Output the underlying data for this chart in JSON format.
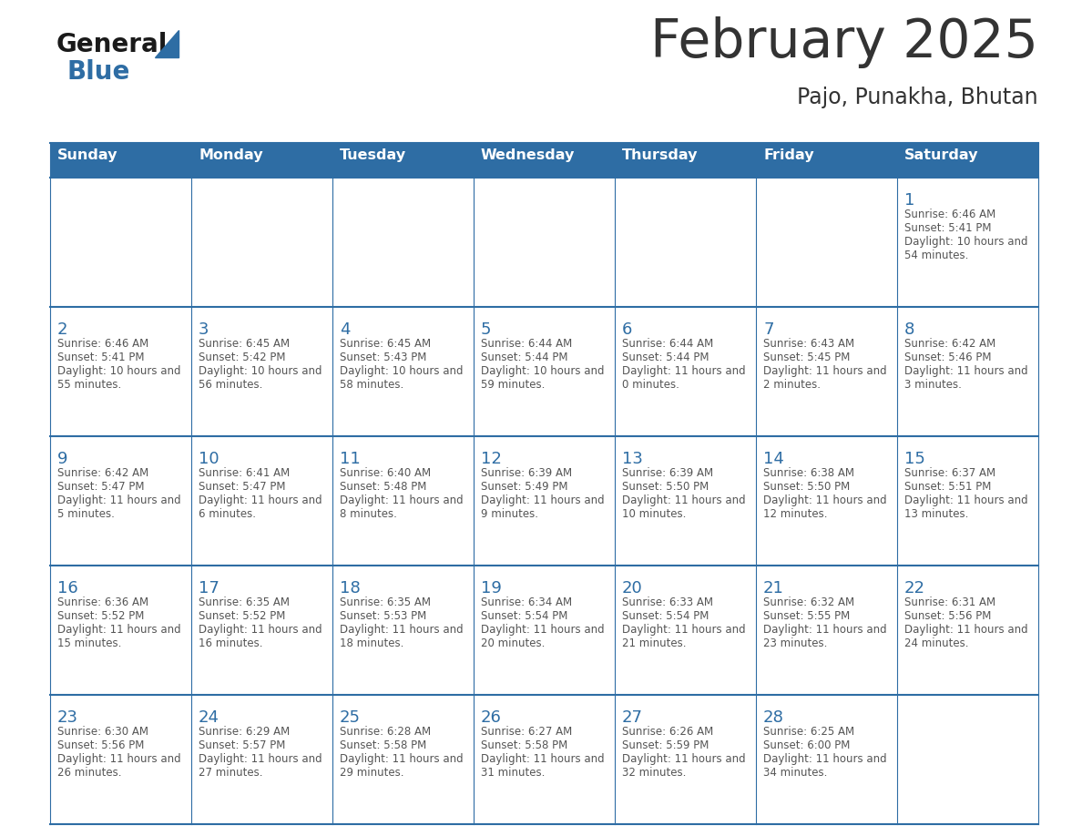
{
  "title": "February 2025",
  "subtitle": "Pajo, Punakha, Bhutan",
  "days_of_week": [
    "Sunday",
    "Monday",
    "Tuesday",
    "Wednesday",
    "Thursday",
    "Friday",
    "Saturday"
  ],
  "header_bg": "#2E6DA4",
  "header_text": "#FFFFFF",
  "cell_bg": "#FFFFFF",
  "day_num_color": "#2E6DA4",
  "text_color": "#333333",
  "info_text_color": "#555555",
  "line_color": "#2E6DA4",
  "logo_general_color": "#1a1a1a",
  "logo_blue_color": "#2E6DA4",
  "logo_triangle_color": "#2E6DA4",
  "calendar_data": [
    [
      {
        "day": null,
        "sunrise": null,
        "sunset": null,
        "daylight": null
      },
      {
        "day": null,
        "sunrise": null,
        "sunset": null,
        "daylight": null
      },
      {
        "day": null,
        "sunrise": null,
        "sunset": null,
        "daylight": null
      },
      {
        "day": null,
        "sunrise": null,
        "sunset": null,
        "daylight": null
      },
      {
        "day": null,
        "sunrise": null,
        "sunset": null,
        "daylight": null
      },
      {
        "day": null,
        "sunrise": null,
        "sunset": null,
        "daylight": null
      },
      {
        "day": 1,
        "sunrise": "6:46 AM",
        "sunset": "5:41 PM",
        "daylight": "10 hours and 54 minutes."
      }
    ],
    [
      {
        "day": 2,
        "sunrise": "6:46 AM",
        "sunset": "5:41 PM",
        "daylight": "10 hours and 55 minutes."
      },
      {
        "day": 3,
        "sunrise": "6:45 AM",
        "sunset": "5:42 PM",
        "daylight": "10 hours and 56 minutes."
      },
      {
        "day": 4,
        "sunrise": "6:45 AM",
        "sunset": "5:43 PM",
        "daylight": "10 hours and 58 minutes."
      },
      {
        "day": 5,
        "sunrise": "6:44 AM",
        "sunset": "5:44 PM",
        "daylight": "10 hours and 59 minutes."
      },
      {
        "day": 6,
        "sunrise": "6:44 AM",
        "sunset": "5:44 PM",
        "daylight": "11 hours and 0 minutes."
      },
      {
        "day": 7,
        "sunrise": "6:43 AM",
        "sunset": "5:45 PM",
        "daylight": "11 hours and 2 minutes."
      },
      {
        "day": 8,
        "sunrise": "6:42 AM",
        "sunset": "5:46 PM",
        "daylight": "11 hours and 3 minutes."
      }
    ],
    [
      {
        "day": 9,
        "sunrise": "6:42 AM",
        "sunset": "5:47 PM",
        "daylight": "11 hours and 5 minutes."
      },
      {
        "day": 10,
        "sunrise": "6:41 AM",
        "sunset": "5:47 PM",
        "daylight": "11 hours and 6 minutes."
      },
      {
        "day": 11,
        "sunrise": "6:40 AM",
        "sunset": "5:48 PM",
        "daylight": "11 hours and 8 minutes."
      },
      {
        "day": 12,
        "sunrise": "6:39 AM",
        "sunset": "5:49 PM",
        "daylight": "11 hours and 9 minutes."
      },
      {
        "day": 13,
        "sunrise": "6:39 AM",
        "sunset": "5:50 PM",
        "daylight": "11 hours and 10 minutes."
      },
      {
        "day": 14,
        "sunrise": "6:38 AM",
        "sunset": "5:50 PM",
        "daylight": "11 hours and 12 minutes."
      },
      {
        "day": 15,
        "sunrise": "6:37 AM",
        "sunset": "5:51 PM",
        "daylight": "11 hours and 13 minutes."
      }
    ],
    [
      {
        "day": 16,
        "sunrise": "6:36 AM",
        "sunset": "5:52 PM",
        "daylight": "11 hours and 15 minutes."
      },
      {
        "day": 17,
        "sunrise": "6:35 AM",
        "sunset": "5:52 PM",
        "daylight": "11 hours and 16 minutes."
      },
      {
        "day": 18,
        "sunrise": "6:35 AM",
        "sunset": "5:53 PM",
        "daylight": "11 hours and 18 minutes."
      },
      {
        "day": 19,
        "sunrise": "6:34 AM",
        "sunset": "5:54 PM",
        "daylight": "11 hours and 20 minutes."
      },
      {
        "day": 20,
        "sunrise": "6:33 AM",
        "sunset": "5:54 PM",
        "daylight": "11 hours and 21 minutes."
      },
      {
        "day": 21,
        "sunrise": "6:32 AM",
        "sunset": "5:55 PM",
        "daylight": "11 hours and 23 minutes."
      },
      {
        "day": 22,
        "sunrise": "6:31 AM",
        "sunset": "5:56 PM",
        "daylight": "11 hours and 24 minutes."
      }
    ],
    [
      {
        "day": 23,
        "sunrise": "6:30 AM",
        "sunset": "5:56 PM",
        "daylight": "11 hours and 26 minutes."
      },
      {
        "day": 24,
        "sunrise": "6:29 AM",
        "sunset": "5:57 PM",
        "daylight": "11 hours and 27 minutes."
      },
      {
        "day": 25,
        "sunrise": "6:28 AM",
        "sunset": "5:58 PM",
        "daylight": "11 hours and 29 minutes."
      },
      {
        "day": 26,
        "sunrise": "6:27 AM",
        "sunset": "5:58 PM",
        "daylight": "11 hours and 31 minutes."
      },
      {
        "day": 27,
        "sunrise": "6:26 AM",
        "sunset": "5:59 PM",
        "daylight": "11 hours and 32 minutes."
      },
      {
        "day": 28,
        "sunrise": "6:25 AM",
        "sunset": "6:00 PM",
        "daylight": "11 hours and 34 minutes."
      },
      {
        "day": null,
        "sunrise": null,
        "sunset": null,
        "daylight": null
      }
    ]
  ]
}
